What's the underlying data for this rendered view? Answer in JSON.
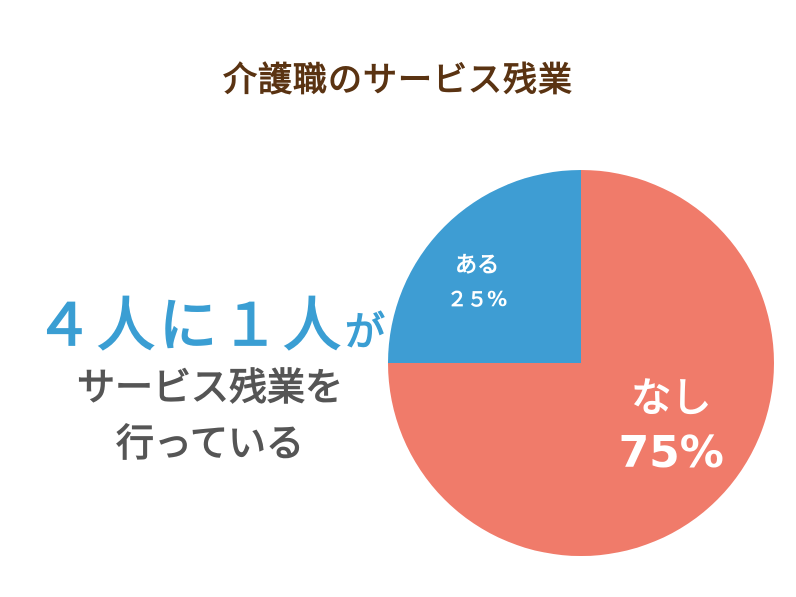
{
  "title": "介護職のサービス残業",
  "headline": {
    "part1": "４人に１人",
    "part2": "が"
  },
  "subtext": {
    "line1": "サービス残業を",
    "line2": "行っている"
  },
  "colors": {
    "title": "#5a3312",
    "headline": "#3a9ed3",
    "subtext": "#555555"
  },
  "chart_data": {
    "type": "pie",
    "title": "介護職のサービス残業",
    "slices": [
      {
        "label": "なし",
        "value": 75,
        "value_label": "75%",
        "color": "#f07b6a"
      },
      {
        "label": "ある",
        "value": 25,
        "value_label": "２５%",
        "color": "#3e9dd3"
      }
    ]
  }
}
